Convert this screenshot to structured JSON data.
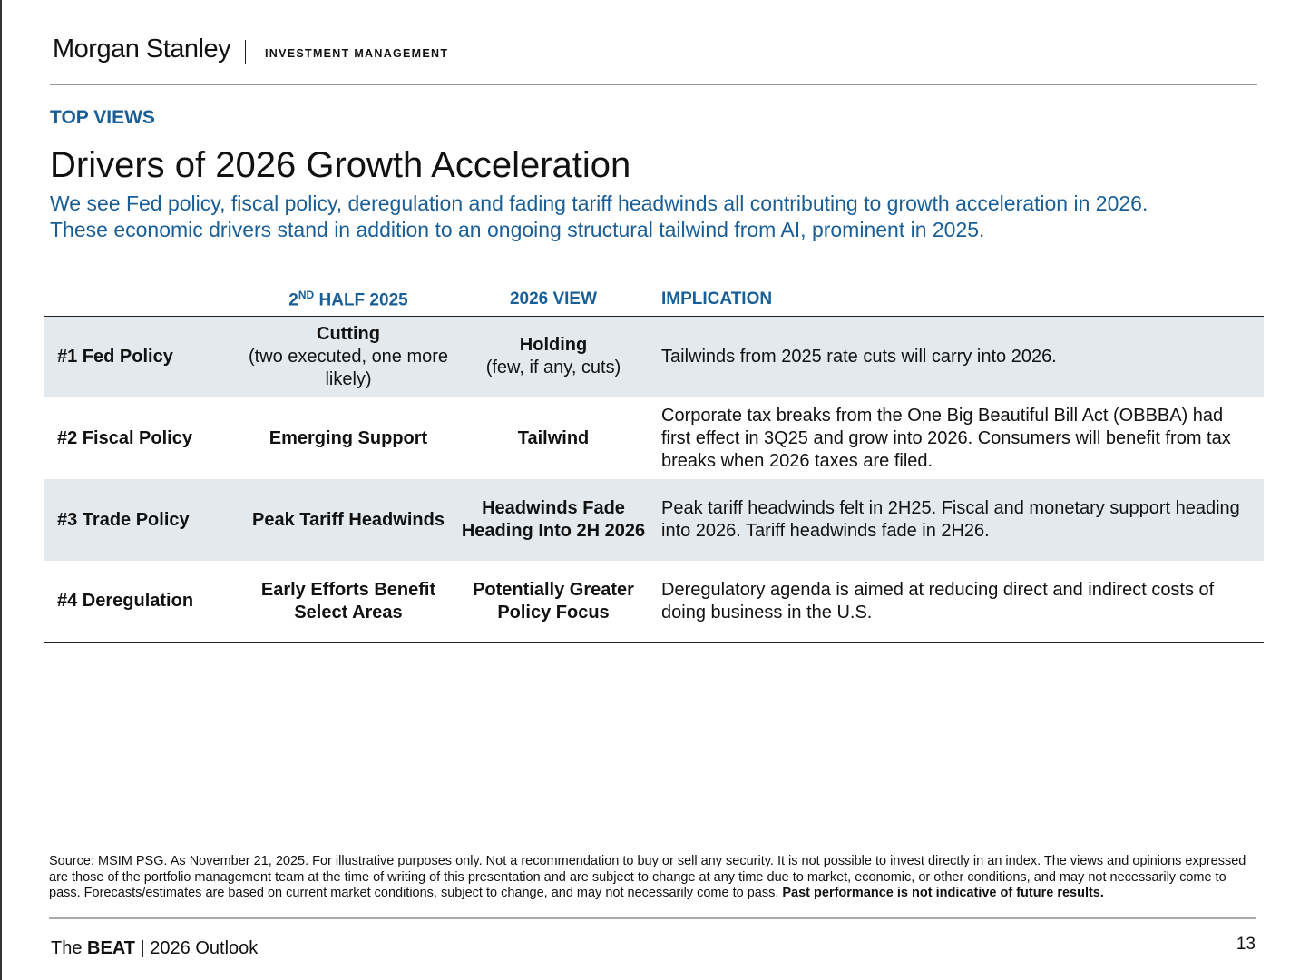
{
  "header": {
    "logo": "Morgan Stanley",
    "division": "INVESTMENT MANAGEMENT"
  },
  "kicker": "TOP VIEWS",
  "title": "Drivers of 2026 Growth Acceleration",
  "subtitle": [
    "We see Fed policy, fiscal policy, deregulation and fading tariff headwinds all contributing to growth acceleration in 2026.",
    "These economic drivers stand in addition to an ongoing structural tailwind from AI, prominent in 2025."
  ],
  "table": {
    "headers": {
      "col2_pre": "2",
      "col2_sup": "ND",
      "col2_post": " HALF 2025",
      "col3": "2026 VIEW",
      "col4": "IMPLICATION"
    },
    "rows": [
      {
        "label": "#1 Fed Policy",
        "half2025_bold": "Cutting",
        "half2025_note": "(two executed, one more likely)",
        "view2026_bold": "Holding",
        "view2026_note": "(few, if any, cuts)",
        "implication": "Tailwinds from 2025 rate cuts will carry into 2026."
      },
      {
        "label": "#2 Fiscal Policy",
        "half2025_bold": "Emerging Support",
        "half2025_note": "",
        "view2026_bold": "Tailwind",
        "view2026_note": "",
        "implication": "Corporate tax breaks from the One Big Beautiful Bill Act (OBBBA) had first effect in 3Q25 and grow into 2026. Consumers will benefit from tax breaks when 2026 taxes are filed."
      },
      {
        "label": "#3 Trade Policy",
        "half2025_bold": "Peak Tariff Headwinds",
        "half2025_note": "",
        "view2026_bold": "Headwinds Fade Heading Into 2H 2026",
        "view2026_note": "",
        "implication": "Peak tariff headwinds felt in 2H25. Fiscal and monetary support heading into 2026. Tariff headwinds fade in 2H26."
      },
      {
        "label": "#4 Deregulation",
        "half2025_bold": "Early Efforts Benefit Select Areas",
        "half2025_note": "",
        "view2026_bold": "Potentially Greater Policy Focus",
        "view2026_note": "",
        "implication": "Deregulatory agenda is aimed at reducing direct and indirect costs of doing business in the U.S."
      }
    ]
  },
  "source": {
    "text": "Source: MSIM PSG. As November 21, 2025. For illustrative purposes only. Not a recommendation to buy or sell any security. It is not possible to invest directly in an index. The views and opinions expressed are those of the portfolio management team at the time of writing of this presentation and are subject to change at any time due to market, economic, or other conditions, and may not necessarily come to pass.  Forecasts/estimates are based on current market conditions, subject to change, and may not necessarily come to pass. ",
    "bold": "Past performance is not indicative of future results."
  },
  "footer": {
    "pre": "The ",
    "brand": "BEAT",
    "post": " | 2026 Outlook",
    "page": "13"
  },
  "colors": {
    "accent": "#1a5e96",
    "row_shade": "#e3e9ed"
  }
}
